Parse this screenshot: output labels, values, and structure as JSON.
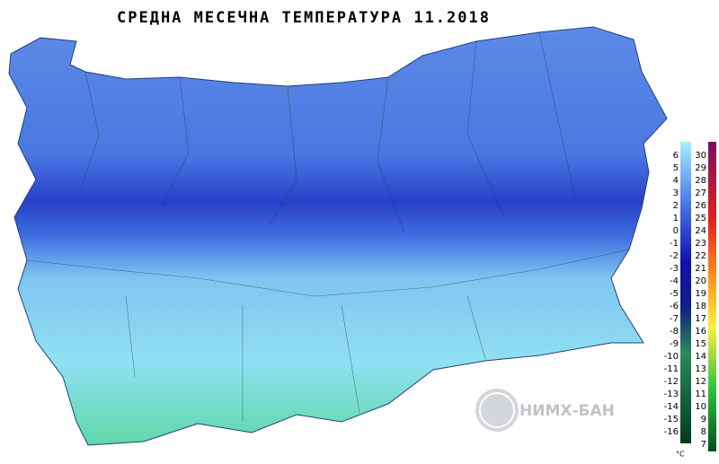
{
  "title": "СРЕДНА МЕСЕЧНА ТЕМПЕРАТУРА  11.2018",
  "legend": {
    "left": [
      6,
      5,
      4,
      3,
      2,
      1,
      0,
      -1,
      -2,
      -3,
      -4,
      -5,
      -6,
      -7,
      -8,
      -9,
      -10,
      -11,
      -12,
      -13,
      -14,
      -15,
      -16
    ],
    "right": [
      30,
      29,
      28,
      27,
      26,
      25,
      24,
      23,
      22,
      21,
      20,
      19,
      18,
      17,
      16,
      15,
      14,
      13,
      12,
      11,
      10,
      9,
      8,
      7
    ],
    "unit": "°C"
  },
  "logo": "НИМХ-БАН"
}
